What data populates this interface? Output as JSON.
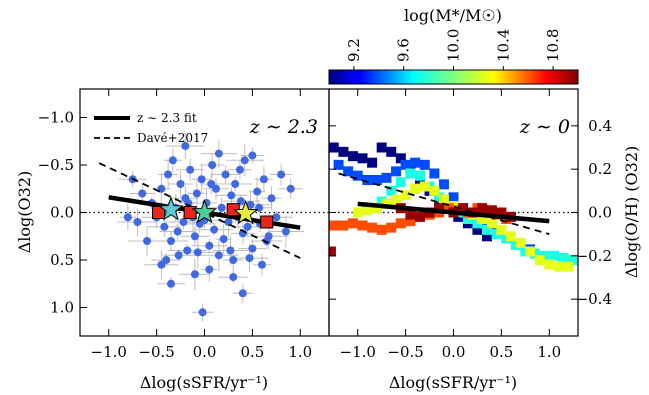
{
  "chart_data": [
    {
      "type": "scatter",
      "panel": "left",
      "annotation": "z ∼ 2.3",
      "xlabel": "Δlog(sSFR/yr⁻¹)",
      "ylabel": "Δlog(O32)",
      "xlim": [
        -1.3,
        1.3
      ],
      "ylim": [
        1.3,
        -1.3
      ],
      "y_inverted": true,
      "xticks": [
        "−1.0",
        "−0.5",
        "0.0",
        "0.5",
        "1.0"
      ],
      "xtick_values": [
        -1.0,
        -0.5,
        0.0,
        0.5,
        1.0
      ],
      "yticks": [
        "−1.0",
        "−0.5",
        "0.0",
        "0.5",
        "1.0"
      ],
      "ytick_values": [
        -1.0,
        -0.5,
        0.0,
        0.5,
        1.0
      ],
      "legend": {
        "placement": "top-left",
        "entries": [
          {
            "label": "z ∼ 2.3 fit",
            "style": "solid-thick"
          },
          {
            "label": "Davé+2017",
            "style": "dashed"
          }
        ]
      },
      "zero_line": {
        "y": 0.0,
        "style": "dotted"
      },
      "fit_line": {
        "x": [
          -1.0,
          1.0
        ],
        "y": [
          -0.16,
          0.16
        ]
      },
      "dave_line": {
        "x": [
          -1.1,
          1.0
        ],
        "y": [
          -0.52,
          0.48
        ]
      },
      "points_color": "#4169e1",
      "points": [
        {
          "x": -0.55,
          "y": -0.1
        },
        {
          "x": -0.5,
          "y": 0.05
        },
        {
          "x": -0.45,
          "y": -0.25
        },
        {
          "x": -0.42,
          "y": 0.15
        },
        {
          "x": -0.38,
          "y": -0.4
        },
        {
          "x": -0.35,
          "y": 0.3
        },
        {
          "x": -0.3,
          "y": -0.05
        },
        {
          "x": -0.28,
          "y": 0.2
        },
        {
          "x": -0.25,
          "y": -0.3
        },
        {
          "x": -0.22,
          "y": 0.1
        },
        {
          "x": -0.2,
          "y": -0.15
        },
        {
          "x": -0.18,
          "y": 0.4
        },
        {
          "x": -0.15,
          "y": -0.45
        },
        {
          "x": -0.12,
          "y": 0.05
        },
        {
          "x": -0.1,
          "y": 0.25
        },
        {
          "x": -0.08,
          "y": -0.2
        },
        {
          "x": -0.05,
          "y": 0.12
        },
        {
          "x": -0.03,
          "y": -0.35
        },
        {
          "x": 0.0,
          "y": 0.08
        },
        {
          "x": 0.02,
          "y": -0.1
        },
        {
          "x": 0.05,
          "y": 0.35
        },
        {
          "x": 0.08,
          "y": -0.5
        },
        {
          "x": 0.1,
          "y": 0.18
        },
        {
          "x": 0.12,
          "y": -0.25
        },
        {
          "x": 0.15,
          "y": 0.45
        },
        {
          "x": 0.18,
          "y": -0.05
        },
        {
          "x": 0.2,
          "y": 0.28
        },
        {
          "x": 0.22,
          "y": -0.4
        },
        {
          "x": 0.25,
          "y": 0.1
        },
        {
          "x": 0.28,
          "y": -0.18
        },
        {
          "x": 0.3,
          "y": 0.5
        },
        {
          "x": 0.32,
          "y": -0.3
        },
        {
          "x": 0.35,
          "y": 0.05
        },
        {
          "x": 0.38,
          "y": -0.12
        },
        {
          "x": 0.4,
          "y": 0.22
        },
        {
          "x": 0.42,
          "y": -0.55
        },
        {
          "x": 0.45,
          "y": 0.15
        },
        {
          "x": 0.48,
          "y": -0.08
        },
        {
          "x": 0.5,
          "y": 0.38
        },
        {
          "x": 0.55,
          "y": -0.22
        },
        {
          "x": 0.58,
          "y": 0.12
        },
        {
          "x": 0.62,
          "y": -0.35
        },
        {
          "x": 0.65,
          "y": 0.3
        },
        {
          "x": 0.7,
          "y": -0.15
        },
        {
          "x": 0.75,
          "y": 0.05
        },
        {
          "x": 0.8,
          "y": -0.4
        },
        {
          "x": 0.85,
          "y": 0.2
        },
        {
          "x": 0.9,
          "y": -0.25
        },
        {
          "x": -0.6,
          "y": 0.3
        },
        {
          "x": -0.65,
          "y": -0.2
        },
        {
          "x": -0.7,
          "y": 0.1
        },
        {
          "x": -0.75,
          "y": -0.35
        },
        {
          "x": -0.8,
          "y": 0.05
        },
        {
          "x": -0.4,
          "y": 0.5
        },
        {
          "x": -0.33,
          "y": -0.55
        },
        {
          "x": -0.27,
          "y": 0.45
        },
        {
          "x": -0.17,
          "y": -0.1
        },
        {
          "x": -0.07,
          "y": 0.42
        },
        {
          "x": 0.07,
          "y": -0.3
        },
        {
          "x": 0.27,
          "y": 0.4
        },
        {
          "x": 0.37,
          "y": -0.45
        },
        {
          "x": 0.47,
          "y": 0.48
        },
        {
          "x": 0.57,
          "y": -0.05
        },
        {
          "x": 0.67,
          "y": 0.25
        },
        {
          "x": -0.35,
          "y": 0.75
        },
        {
          "x": 0.05,
          "y": 0.6
        },
        {
          "x": 0.3,
          "y": 0.68
        },
        {
          "x": 0.6,
          "y": 0.55
        },
        {
          "x": -0.1,
          "y": 0.65
        },
        {
          "x": 0.4,
          "y": 0.85
        },
        {
          "x": -0.45,
          "y": 0.55
        },
        {
          "x": -0.02,
          "y": 1.05
        },
        {
          "x": 0.15,
          "y": -0.62
        },
        {
          "x": 0.5,
          "y": -0.6
        },
        {
          "x": -0.2,
          "y": -0.7
        }
      ],
      "star_points": [
        {
          "x": -0.35,
          "y": -0.03,
          "color": "#5ec8d8"
        },
        {
          "x": 0.0,
          "y": 0.0,
          "color": "#4ad19a"
        },
        {
          "x": 0.43,
          "y": 0.01,
          "color": "#e8f03a"
        }
      ],
      "square_points": [
        {
          "x": -0.48,
          "y": 0.0
        },
        {
          "x": -0.15,
          "y": 0.0
        },
        {
          "x": 0.3,
          "y": -0.03
        },
        {
          "x": 0.65,
          "y": 0.1
        }
      ]
    },
    {
      "type": "scatter",
      "panel": "right",
      "annotation": "z ∼ 0",
      "xlabel": "Δlog(sSFR/yr⁻¹)",
      "ylabel": "Δlog(O/H) (O32)",
      "xlim": [
        -1.3,
        1.3
      ],
      "ylim": [
        -0.57,
        0.57
      ],
      "xticks": [
        "−1.0",
        "−0.5",
        "0.0",
        "0.5",
        "1.0"
      ],
      "xtick_values": [
        -1.0,
        -0.5,
        0.0,
        0.5,
        1.0
      ],
      "yticks": [
        "−0.4",
        "−0.2",
        "0.0",
        "0.2",
        "0.4"
      ],
      "ytick_values": [
        -0.4,
        -0.2,
        0.0,
        0.2,
        0.4
      ],
      "zero_line": {
        "y": 0.0,
        "style": "dotted"
      },
      "fit_line": {
        "x": [
          -1.0,
          1.0
        ],
        "y": [
          0.04,
          -0.04
        ]
      },
      "dave_line": {
        "x": [
          -1.2,
          1.0
        ],
        "y": [
          0.18,
          -0.1
        ]
      },
      "colorbar": {
        "label": "log(M*/M☉)",
        "ticks": [
          "9.2",
          "9.6",
          "10.0",
          "10.4",
          "10.8"
        ],
        "tick_values": [
          9.2,
          9.6,
          10.0,
          10.4,
          10.8
        ],
        "range": [
          9.0,
          11.0
        ],
        "colormap": "jet"
      },
      "tracks": [
        {
          "mass": 9.0,
          "points": [
            [
              -1.25,
              0.3
            ],
            [
              -1.15,
              0.28
            ],
            [
              -1.05,
              0.26
            ],
            [
              -0.95,
              0.25
            ],
            [
              -0.85,
              0.23
            ],
            [
              -0.75,
              0.3
            ],
            [
              -0.65,
              0.28
            ],
            [
              -0.55,
              0.25
            ],
            [
              -0.45,
              0.2
            ],
            [
              -0.35,
              0.15
            ],
            [
              -0.25,
              0.1
            ],
            [
              -0.15,
              0.05
            ],
            [
              -0.05,
              0.02
            ],
            [
              0.05,
              -0.02
            ],
            [
              0.15,
              -0.05
            ],
            [
              0.25,
              -0.08
            ],
            [
              0.35,
              -0.11
            ]
          ]
        },
        {
          "mass": 9.4,
          "points": [
            [
              -1.2,
              0.22
            ],
            [
              -1.1,
              0.19
            ],
            [
              -1.0,
              0.17
            ],
            [
              -0.9,
              0.15
            ],
            [
              -0.8,
              0.15
            ],
            [
              -0.7,
              0.16
            ],
            [
              -0.6,
              0.19
            ],
            [
              -0.5,
              0.22
            ],
            [
              -0.4,
              0.23
            ],
            [
              -0.3,
              0.22
            ],
            [
              -0.2,
              0.18
            ],
            [
              -0.1,
              0.13
            ],
            [
              0.0,
              0.07
            ],
            [
              0.1,
              0.02
            ],
            [
              0.2,
              -0.02
            ],
            [
              0.3,
              -0.05
            ],
            [
              0.4,
              -0.07
            ],
            [
              0.5,
              -0.1
            ],
            [
              0.6,
              -0.12
            ],
            [
              0.7,
              -0.15
            ],
            [
              0.8,
              -0.17
            ]
          ]
        },
        {
          "mass": 9.8,
          "points": [
            [
              -0.75,
              0.05
            ],
            [
              -0.65,
              0.1
            ],
            [
              -0.55,
              0.14
            ],
            [
              -0.45,
              0.18
            ],
            [
              -0.35,
              0.17
            ],
            [
              -0.25,
              0.12
            ],
            [
              -0.15,
              0.07
            ],
            [
              -0.05,
              0.03
            ],
            [
              0.05,
              0.0
            ],
            [
              0.15,
              -0.03
            ],
            [
              0.25,
              -0.05
            ],
            [
              0.35,
              -0.08
            ],
            [
              0.45,
              -0.1
            ],
            [
              0.55,
              -0.12
            ],
            [
              0.65,
              -0.15
            ],
            [
              0.75,
              -0.18
            ],
            [
              0.85,
              -0.19
            ],
            [
              0.95,
              -0.2
            ],
            [
              1.05,
              -0.2
            ],
            [
              1.15,
              -0.21
            ],
            [
              1.25,
              -0.22
            ]
          ]
        },
        {
          "mass": 10.2,
          "points": [
            [
              -1.0,
              0.0
            ],
            [
              -0.9,
              0.01
            ],
            [
              -0.8,
              0.02
            ],
            [
              -0.7,
              0.04
            ],
            [
              -0.6,
              0.06
            ],
            [
              -0.5,
              0.08
            ],
            [
              -0.4,
              0.11
            ],
            [
              -0.3,
              0.12
            ],
            [
              -0.2,
              0.1
            ],
            [
              -0.1,
              0.06
            ],
            [
              0.0,
              0.03
            ],
            [
              0.1,
              0.01
            ],
            [
              0.2,
              -0.01
            ],
            [
              0.3,
              -0.03
            ],
            [
              0.4,
              -0.05
            ],
            [
              0.5,
              -0.08
            ],
            [
              0.6,
              -0.11
            ],
            [
              0.7,
              -0.14
            ],
            [
              0.8,
              -0.18
            ],
            [
              0.9,
              -0.22
            ],
            [
              1.0,
              -0.24
            ],
            [
              1.1,
              -0.25
            ],
            [
              1.2,
              -0.25
            ]
          ]
        },
        {
          "mass": 10.6,
          "points": [
            [
              -1.25,
              -0.06
            ],
            [
              -1.15,
              -0.06
            ],
            [
              -1.05,
              -0.05
            ],
            [
              -0.95,
              -0.06
            ],
            [
              -0.85,
              -0.07
            ],
            [
              -0.75,
              -0.08
            ],
            [
              -0.65,
              -0.07
            ],
            [
              -0.55,
              -0.05
            ],
            [
              -0.45,
              -0.04
            ],
            [
              -0.35,
              -0.02
            ],
            [
              -0.25,
              -0.01
            ],
            [
              -0.15,
              0.0
            ],
            [
              -0.05,
              0.02
            ],
            [
              0.05,
              0.01
            ],
            [
              0.15,
              0.0
            ],
            [
              0.25,
              0.02
            ],
            [
              0.35,
              0.01
            ],
            [
              0.45,
              -0.01
            ],
            [
              0.55,
              -0.03
            ]
          ]
        },
        {
          "mass": 10.95,
          "points": [
            [
              -1.28,
              -0.18
            ],
            [
              -0.55,
              0.02
            ],
            [
              -0.45,
              -0.01
            ],
            [
              -0.35,
              -0.02
            ],
            [
              -0.25,
              0.0
            ],
            [
              -0.15,
              0.02
            ],
            [
              0.0,
              0.0
            ],
            [
              0.1,
              0.02
            ],
            [
              0.2,
              0.0
            ],
            [
              0.3,
              0.02
            ],
            [
              0.4,
              0.01
            ],
            [
              0.5,
              0.0
            ],
            [
              0.6,
              -0.02
            ]
          ]
        }
      ]
    }
  ]
}
